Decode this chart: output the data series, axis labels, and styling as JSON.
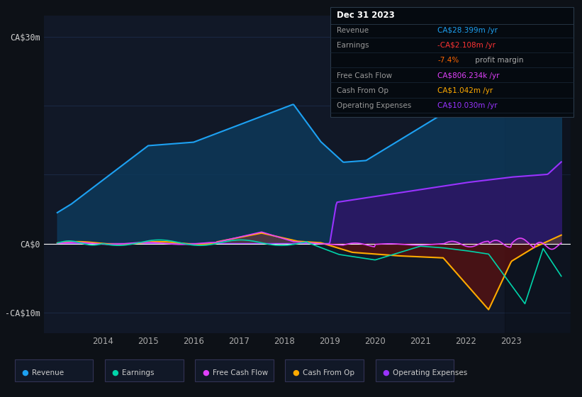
{
  "bg_color": "#0d1117",
  "plot_bg_color": "#111827",
  "grid_color": "#1e3050",
  "zero_line_color": "#ffffff",
  "legend_items": [
    {
      "label": "Revenue",
      "color": "#1da1f2"
    },
    {
      "label": "Earnings",
      "color": "#00d4aa"
    },
    {
      "label": "Free Cash Flow",
      "color": "#e040fb"
    },
    {
      "label": "Cash From Op",
      "color": "#ffaa00"
    },
    {
      "label": "Operating Expenses",
      "color": "#9933ff"
    }
  ],
  "table_title": "Dec 31 2023",
  "table_rows": [
    {
      "label": "Revenue",
      "value": "CA$28.399m",
      "color": "#1da1f2"
    },
    {
      "label": "Earnings",
      "value": "-CA$2.108m",
      "color": "#ff3333"
    },
    {
      "label": "",
      "value": "-7.4%",
      "color": "#ff6600",
      "suffix": " profit margin"
    },
    {
      "label": "Free Cash Flow",
      "value": "CA$806.234k",
      "color": "#e040fb"
    },
    {
      "label": "Cash From Op",
      "value": "CA$1.042m",
      "color": "#ffaa00"
    },
    {
      "label": "Operating Expenses",
      "value": "CA$10.030m",
      "color": "#9933ff"
    }
  ],
  "ytick_vals": [
    -10,
    0,
    30
  ],
  "ytick_labels": [
    "-CA$10m",
    "CA$0",
    "CA$30m"
  ],
  "xtick_vals": [
    2014,
    2015,
    2016,
    2017,
    2018,
    2019,
    2020,
    2021,
    2022,
    2023
  ],
  "xlim": [
    2012.7,
    2024.3
  ],
  "ylim": [
    -13,
    33
  ]
}
